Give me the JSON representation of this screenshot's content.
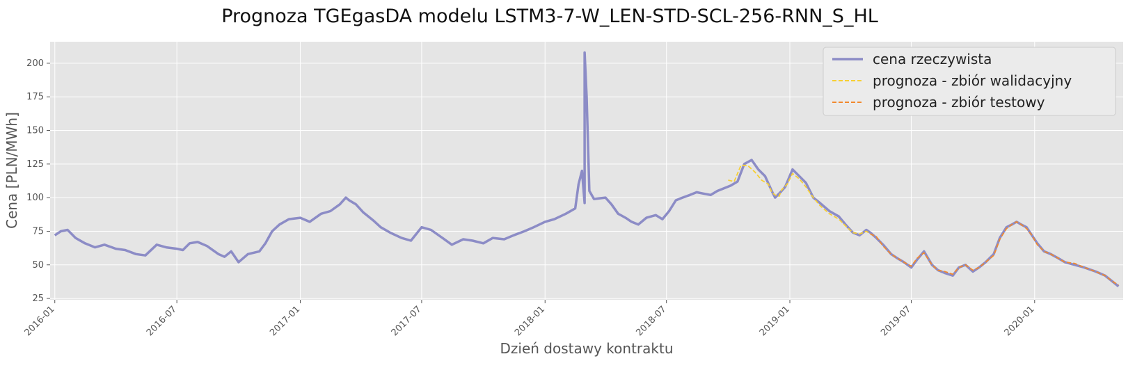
{
  "chart_data": {
    "type": "line",
    "title": "Prognoza TGEgasDA modelu LSTM3-7-W_LEN-STD-SCL-256-RNN_S_HL",
    "xlabel": "Dzień dostawy kontraktu",
    "ylabel": "Cena [PLN/MWh]",
    "x_type": "date",
    "xlim": [
      "2015-12-25",
      "2020-05-12"
    ],
    "ylim": [
      24,
      216
    ],
    "x_ticks": [
      "2016-01",
      "2016-07",
      "2017-01",
      "2017-07",
      "2018-01",
      "2018-07",
      "2019-01",
      "2019-07",
      "2020-01"
    ],
    "y_ticks": [
      25,
      50,
      75,
      100,
      125,
      150,
      175,
      200
    ],
    "grid": true,
    "legend_position": "top-right",
    "series": [
      {
        "name": "cena rzeczywista",
        "color": "#8c8cc6",
        "style": "solid",
        "points": [
          [
            "2016-01-01",
            72
          ],
          [
            "2016-01-10",
            75
          ],
          [
            "2016-01-20",
            76
          ],
          [
            "2016-02-01",
            70
          ],
          [
            "2016-02-15",
            66
          ],
          [
            "2016-03-01",
            63
          ],
          [
            "2016-03-15",
            65
          ],
          [
            "2016-04-01",
            62
          ],
          [
            "2016-04-15",
            61
          ],
          [
            "2016-05-01",
            58
          ],
          [
            "2016-05-15",
            57
          ],
          [
            "2016-06-01",
            65
          ],
          [
            "2016-06-15",
            63
          ],
          [
            "2016-07-01",
            62
          ],
          [
            "2016-07-10",
            61
          ],
          [
            "2016-07-20",
            66
          ],
          [
            "2016-08-01",
            67
          ],
          [
            "2016-08-15",
            64
          ],
          [
            "2016-09-01",
            58
          ],
          [
            "2016-09-10",
            56
          ],
          [
            "2016-09-20",
            60
          ],
          [
            "2016-10-01",
            52
          ],
          [
            "2016-10-15",
            58
          ],
          [
            "2016-11-01",
            60
          ],
          [
            "2016-11-10",
            66
          ],
          [
            "2016-11-20",
            75
          ],
          [
            "2016-12-01",
            80
          ],
          [
            "2016-12-15",
            84
          ],
          [
            "2017-01-01",
            85
          ],
          [
            "2017-01-15",
            82
          ],
          [
            "2017-02-01",
            88
          ],
          [
            "2017-02-15",
            90
          ],
          [
            "2017-03-01",
            95
          ],
          [
            "2017-03-10",
            100
          ],
          [
            "2017-03-15",
            98
          ],
          [
            "2017-03-25",
            95
          ],
          [
            "2017-04-05",
            89
          ],
          [
            "2017-04-20",
            83
          ],
          [
            "2017-05-01",
            78
          ],
          [
            "2017-05-15",
            74
          ],
          [
            "2017-06-01",
            70
          ],
          [
            "2017-06-15",
            68
          ],
          [
            "2017-07-01",
            78
          ],
          [
            "2017-07-15",
            76
          ],
          [
            "2017-08-01",
            70
          ],
          [
            "2017-08-15",
            65
          ],
          [
            "2017-09-01",
            69
          ],
          [
            "2017-09-15",
            68
          ],
          [
            "2017-10-01",
            66
          ],
          [
            "2017-10-15",
            70
          ],
          [
            "2017-11-01",
            69
          ],
          [
            "2017-11-15",
            72
          ],
          [
            "2017-12-01",
            75
          ],
          [
            "2017-12-15",
            78
          ],
          [
            "2018-01-01",
            82
          ],
          [
            "2018-01-15",
            84
          ],
          [
            "2018-02-01",
            88
          ],
          [
            "2018-02-15",
            92
          ],
          [
            "2018-03-01",
            96
          ],
          [
            "2018-03-15",
            99
          ],
          [
            "2018-04-01",
            100
          ],
          [
            "2018-04-10",
            95
          ],
          [
            "2018-04-20",
            88
          ],
          [
            "2018-05-01",
            85
          ],
          [
            "2018-05-10",
            82
          ],
          [
            "2018-05-20",
            80
          ],
          [
            "2018-06-01",
            85
          ],
          [
            "2018-06-15",
            87
          ],
          [
            "2018-06-25",
            84
          ],
          [
            "2018-07-05",
            90
          ],
          [
            "2018-07-15",
            98
          ],
          [
            "2018-07-25",
            100
          ],
          [
            "2018-08-05",
            102
          ],
          [
            "2018-08-15",
            104
          ],
          [
            "2018-08-25",
            103
          ],
          [
            "2018-09-05",
            102
          ],
          [
            "2018-09-15",
            105
          ],
          [
            "2018-09-25",
            107
          ],
          [
            "2018-10-05",
            109
          ],
          [
            "2018-10-15",
            112
          ],
          [
            "2018-10-25",
            125
          ],
          [
            "2018-11-05",
            128
          ],
          [
            "2018-11-15",
            121
          ],
          [
            "2018-11-25",
            116
          ],
          [
            "2018-12-05",
            105
          ],
          [
            "2018-12-10",
            100
          ],
          [
            "2018-12-18",
            104
          ],
          [
            "2018-12-25",
            108
          ],
          [
            "2019-01-05",
            121
          ],
          [
            "2019-01-15",
            116
          ],
          [
            "2019-01-25",
            111
          ],
          [
            "2019-02-05",
            100
          ],
          [
            "2019-02-15",
            96
          ],
          [
            "2019-03-01",
            90
          ],
          [
            "2019-03-15",
            86
          ],
          [
            "2019-03-25",
            80
          ],
          [
            "2019-04-05",
            74
          ],
          [
            "2019-04-15",
            72
          ],
          [
            "2019-04-25",
            76
          ],
          [
            "2019-05-01",
            74
          ],
          [
            "2019-05-10",
            70
          ],
          [
            "2019-05-20",
            65
          ],
          [
            "2019-06-01",
            58
          ],
          [
            "2019-06-10",
            55
          ],
          [
            "2019-06-20",
            52
          ],
          [
            "2019-07-01",
            48
          ],
          [
            "2019-07-10",
            54
          ],
          [
            "2019-07-20",
            60
          ],
          [
            "2019-08-01",
            50
          ],
          [
            "2019-08-10",
            46
          ],
          [
            "2019-08-20",
            44
          ],
          [
            "2019-09-01",
            42
          ],
          [
            "2019-09-10",
            48
          ],
          [
            "2019-09-20",
            50
          ],
          [
            "2019-10-01",
            45
          ],
          [
            "2019-10-10",
            48
          ],
          [
            "2019-10-20",
            52
          ],
          [
            "2019-11-01",
            58
          ],
          [
            "2019-11-10",
            70
          ],
          [
            "2019-11-20",
            78
          ],
          [
            "2019-11-28",
            80
          ],
          [
            "2019-12-05",
            82
          ],
          [
            "2019-12-12",
            80
          ],
          [
            "2019-12-20",
            78
          ],
          [
            "2019-12-28",
            72
          ],
          [
            "2020-01-05",
            66
          ],
          [
            "2020-01-15",
            60
          ],
          [
            "2020-01-25",
            58
          ],
          [
            "2020-02-05",
            55
          ],
          [
            "2020-02-15",
            52
          ],
          [
            "2020-03-01",
            50
          ],
          [
            "2020-03-15",
            48
          ],
          [
            "2020-04-01",
            45
          ],
          [
            "2020-04-15",
            42
          ],
          [
            "2020-04-25",
            38
          ],
          [
            "2020-05-05",
            34
          ]
        ]
      },
      {
        "name": "prognoza - zbiór walidacyjny",
        "color": "#f7cf33",
        "style": "dashed",
        "points": [
          [
            "2018-10-01",
            113
          ],
          [
            "2018-10-10",
            112
          ],
          [
            "2018-10-20",
            124
          ],
          [
            "2018-10-30",
            124
          ],
          [
            "2018-11-10",
            119
          ],
          [
            "2018-11-20",
            113
          ],
          [
            "2018-11-30",
            110
          ],
          [
            "2018-12-05",
            104
          ],
          [
            "2018-12-10",
            102
          ],
          [
            "2018-12-16",
            101
          ],
          [
            "2018-12-20",
            106
          ],
          [
            "2018-12-28",
            110
          ],
          [
            "2019-01-05",
            118
          ],
          [
            "2019-01-15",
            114
          ],
          [
            "2019-01-25",
            108
          ],
          [
            "2019-02-05",
            100
          ],
          [
            "2019-02-15",
            94
          ],
          [
            "2019-03-01",
            88
          ],
          [
            "2019-03-15",
            84
          ],
          [
            "2019-03-25",
            79
          ],
          [
            "2019-04-05",
            74
          ],
          [
            "2019-04-15",
            73
          ],
          [
            "2019-04-25",
            75
          ],
          [
            "2019-05-01",
            73
          ]
        ]
      },
      {
        "name": "prognoza - zbiór testowy",
        "color": "#f2892d",
        "style": "dashed",
        "points": [
          [
            "2019-05-01",
            73
          ],
          [
            "2019-05-10",
            71
          ],
          [
            "2019-05-20",
            64
          ],
          [
            "2019-06-01",
            58
          ],
          [
            "2019-06-10",
            55
          ],
          [
            "2019-06-20",
            52
          ],
          [
            "2019-07-01",
            49
          ],
          [
            "2019-07-10",
            55
          ],
          [
            "2019-07-20",
            59
          ],
          [
            "2019-08-01",
            50
          ],
          [
            "2019-08-10",
            46
          ],
          [
            "2019-08-20",
            45
          ],
          [
            "2019-09-01",
            43
          ],
          [
            "2019-09-10",
            48
          ],
          [
            "2019-09-20",
            50
          ],
          [
            "2019-10-01",
            46
          ],
          [
            "2019-10-10",
            48
          ],
          [
            "2019-10-20",
            52
          ],
          [
            "2019-11-01",
            57
          ],
          [
            "2019-11-10",
            69
          ],
          [
            "2019-11-20",
            77
          ],
          [
            "2019-11-28",
            80
          ],
          [
            "2019-12-05",
            82
          ],
          [
            "2019-12-12",
            80
          ],
          [
            "2019-12-20",
            77
          ],
          [
            "2019-12-28",
            72
          ],
          [
            "2020-01-05",
            65
          ],
          [
            "2020-01-15",
            60
          ],
          [
            "2020-01-25",
            58
          ],
          [
            "2020-02-05",
            55
          ],
          [
            "2020-02-15",
            52
          ],
          [
            "2020-03-01",
            51
          ],
          [
            "2020-03-15",
            48
          ],
          [
            "2020-04-01",
            45
          ],
          [
            "2020-04-15",
            42
          ],
          [
            "2020-04-25",
            38
          ],
          [
            "2020-05-05",
            35
          ]
        ]
      }
    ]
  }
}
